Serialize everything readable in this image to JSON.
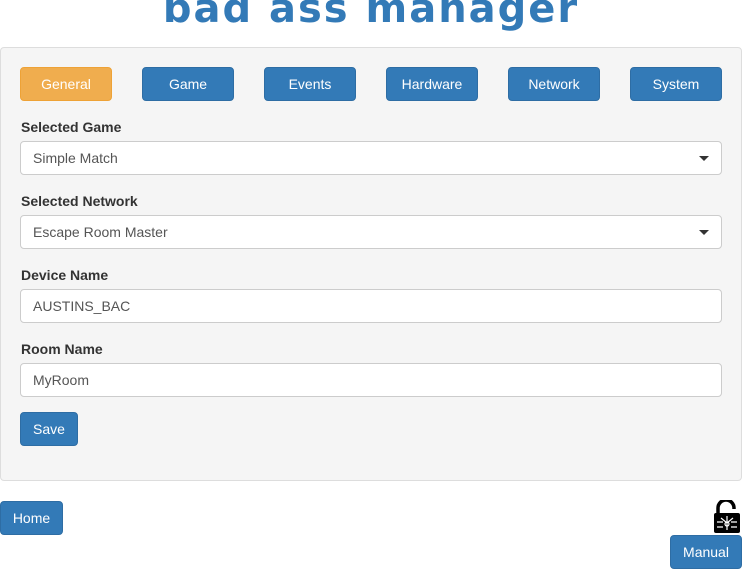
{
  "header": {
    "title": "bad ass manager"
  },
  "tabs": [
    {
      "label": "General",
      "active": true
    },
    {
      "label": "Game"
    },
    {
      "label": "Events"
    },
    {
      "label": "Hardware"
    },
    {
      "label": "Network"
    },
    {
      "label": "System"
    }
  ],
  "form": {
    "selected_game": {
      "label": "Selected Game",
      "value": "Simple Match"
    },
    "selected_network": {
      "label": "Selected Network",
      "value": "Escape Room Master"
    },
    "device_name": {
      "label": "Device Name",
      "value": "AUSTINS_BAC"
    },
    "room_name": {
      "label": "Room Name",
      "value": "MyRoom"
    },
    "save_label": "Save"
  },
  "footer": {
    "home_label": "Home",
    "manual_label": "Manual",
    "lock_icon": "unlocked-padlock-icon"
  },
  "colors": {
    "primary": "#337ab7",
    "active_tab": "#f0ad4e"
  }
}
